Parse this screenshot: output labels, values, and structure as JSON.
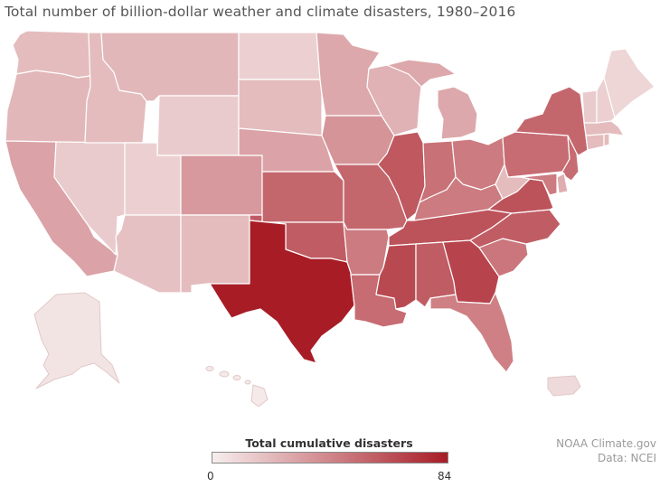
{
  "title": "Total number of billion-dollar weather and climate disasters, 1980–2016",
  "legend": {
    "title": "Total cumulative disasters",
    "min": "0",
    "max": "84",
    "color_low": "#f7eeee",
    "color_high": "#a81c26"
  },
  "credit": {
    "line1": "NOAA Climate.gov",
    "line2": "Data: NCEI"
  },
  "states": [
    {
      "name": "Washington",
      "value": 20
    },
    {
      "name": "Oregon",
      "value": 22
    },
    {
      "name": "California",
      "value": 30
    },
    {
      "name": "Nevada",
      "value": 14
    },
    {
      "name": "Idaho",
      "value": 20
    },
    {
      "name": "Montana",
      "value": 22
    },
    {
      "name": "Wyoming",
      "value": 14
    },
    {
      "name": "Utah",
      "value": 12
    },
    {
      "name": "Arizona",
      "value": 18
    },
    {
      "name": "Colorado",
      "value": 34
    },
    {
      "name": "New Mexico",
      "value": 20
    },
    {
      "name": "North Dakota",
      "value": 12
    },
    {
      "name": "South Dakota",
      "value": 20
    },
    {
      "name": "Nebraska",
      "value": 30
    },
    {
      "name": "Kansas",
      "value": 54
    },
    {
      "name": "Oklahoma",
      "value": 58
    },
    {
      "name": "Texas",
      "value": 84
    },
    {
      "name": "Minnesota",
      "value": 28
    },
    {
      "name": "Iowa",
      "value": 36
    },
    {
      "name": "Missouri",
      "value": 54
    },
    {
      "name": "Arkansas",
      "value": 46
    },
    {
      "name": "Louisiana",
      "value": 52
    },
    {
      "name": "Wisconsin",
      "value": 24
    },
    {
      "name": "Michigan",
      "value": 28
    },
    {
      "name": "Illinois",
      "value": 60
    },
    {
      "name": "Indiana",
      "value": 50
    },
    {
      "name": "Ohio",
      "value": 46
    },
    {
      "name": "Kentucky",
      "value": 46
    },
    {
      "name": "Tennessee",
      "value": 62
    },
    {
      "name": "Mississippi",
      "value": 66
    },
    {
      "name": "Alabama",
      "value": 58
    },
    {
      "name": "Georgia",
      "value": 68
    },
    {
      "name": "Florida",
      "value": 44
    },
    {
      "name": "South Carolina",
      "value": 48
    },
    {
      "name": "North Carolina",
      "value": 58
    },
    {
      "name": "Virginia",
      "value": 62
    },
    {
      "name": "West Virginia",
      "value": 20
    },
    {
      "name": "Pennsylvania",
      "value": 52
    },
    {
      "name": "New York",
      "value": 54
    },
    {
      "name": "New Jersey",
      "value": 52
    },
    {
      "name": "Delaware",
      "value": 26
    },
    {
      "name": "Maryland",
      "value": 46
    },
    {
      "name": "Connecticut",
      "value": 20
    },
    {
      "name": "Rhode Island",
      "value": 20
    },
    {
      "name": "Massachusetts",
      "value": 20
    },
    {
      "name": "Vermont",
      "value": 14
    },
    {
      "name": "New Hampshire",
      "value": 12
    },
    {
      "name": "Maine",
      "value": 10
    },
    {
      "name": "Alaska",
      "value": 4
    },
    {
      "name": "Hawaii",
      "value": 2
    },
    {
      "name": "Puerto Rico",
      "value": 8
    }
  ]
}
